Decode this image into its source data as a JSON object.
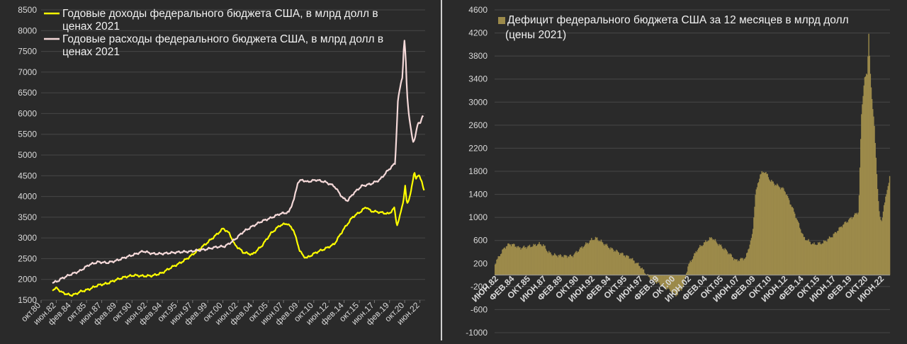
{
  "chart_data": [
    {
      "type": "line",
      "title": "",
      "xlabel": "",
      "ylabel": "",
      "ylim": [
        1500,
        8500
      ],
      "y_ticks": [
        "1500",
        "2000",
        "2500",
        "3000",
        "3500",
        "4000",
        "4500",
        "5000",
        "5500",
        "6000",
        "6500",
        "7000",
        "7500",
        "8000",
        "8500"
      ],
      "x_range": [
        1980.75,
        2023.0
      ],
      "x_ticks": [
        {
          "label": "окт.80",
          "x": 1980.75
        },
        {
          "label": "июн.82",
          "x": 1982.42
        },
        {
          "label": "фев.84",
          "x": 1984.08
        },
        {
          "label": "окт.85",
          "x": 1985.75
        },
        {
          "label": "июн.87",
          "x": 1987.42
        },
        {
          "label": "фев.89",
          "x": 1989.08
        },
        {
          "label": "окт.90",
          "x": 1990.75
        },
        {
          "label": "июн.92",
          "x": 1992.42
        },
        {
          "label": "фев.94",
          "x": 1994.08
        },
        {
          "label": "окт.95",
          "x": 1995.75
        },
        {
          "label": "июн.97",
          "x": 1997.42
        },
        {
          "label": "фев.99",
          "x": 1999.08
        },
        {
          "label": "окт.00",
          "x": 2000.75
        },
        {
          "label": "июн.02",
          "x": 2002.42
        },
        {
          "label": "фев.04",
          "x": 2004.08
        },
        {
          "label": "окт.05",
          "x": 2005.75
        },
        {
          "label": "июн.07",
          "x": 2007.42
        },
        {
          "label": "фев.09",
          "x": 2009.08
        },
        {
          "label": "окт.10",
          "x": 2010.75
        },
        {
          "label": "июн.12",
          "x": 2012.42
        },
        {
          "label": "фев.14",
          "x": 2014.08
        },
        {
          "label": "окт.15",
          "x": 2015.75
        },
        {
          "label": "июн.17",
          "x": 2017.42
        },
        {
          "label": "фев.19",
          "x": 2019.08
        },
        {
          "label": "окт.20",
          "x": 2020.75
        },
        {
          "label": "июн.22",
          "x": 2022.42
        }
      ],
      "grid": true,
      "legend_position": "top-left",
      "series": [
        {
          "name": "Годовые доходы федерального бюджета США, в млрд долл в ценах 2021",
          "color": "#ffff00",
          "points": [
            [
              1982.0,
              1750
            ],
            [
              1982.5,
              1790
            ],
            [
              1983.0,
              1690
            ],
            [
              1983.5,
              1650
            ],
            [
              1984.0,
              1620
            ],
            [
              1984.5,
              1640
            ],
            [
              1985.0,
              1700
            ],
            [
              1986.0,
              1760
            ],
            [
              1987.0,
              1860
            ],
            [
              1988.0,
              1900
            ],
            [
              1989.0,
              1990
            ],
            [
              1990.0,
              2060
            ],
            [
              1991.0,
              2100
            ],
            [
              1992.0,
              2080
            ],
            [
              1993.0,
              2090
            ],
            [
              1994.0,
              2150
            ],
            [
              1995.0,
              2280
            ],
            [
              1996.0,
              2390
            ],
            [
              1997.0,
              2530
            ],
            [
              1998.0,
              2700
            ],
            [
              1999.0,
              2880
            ],
            [
              2000.0,
              3070
            ],
            [
              2000.8,
              3230
            ],
            [
              2001.5,
              3100
            ],
            [
              2002.0,
              2850
            ],
            [
              2003.0,
              2650
            ],
            [
              2004.0,
              2600
            ],
            [
              2005.0,
              2800
            ],
            [
              2006.0,
              3100
            ],
            [
              2007.0,
              3300
            ],
            [
              2007.8,
              3350
            ],
            [
              2008.5,
              3200
            ],
            [
              2009.2,
              2700
            ],
            [
              2009.6,
              2560
            ],
            [
              2010.0,
              2520
            ],
            [
              2011.0,
              2650
            ],
            [
              2012.0,
              2740
            ],
            [
              2013.0,
              2850
            ],
            [
              2014.0,
              3200
            ],
            [
              2015.0,
              3500
            ],
            [
              2016.0,
              3650
            ],
            [
              2016.5,
              3750
            ],
            [
              2017.0,
              3650
            ],
            [
              2018.0,
              3620
            ],
            [
              2019.0,
              3580
            ],
            [
              2019.6,
              3720
            ],
            [
              2019.9,
              3300
            ],
            [
              2020.2,
              3500
            ],
            [
              2020.6,
              3900
            ],
            [
              2020.8,
              4250
            ],
            [
              2021.0,
              3800
            ],
            [
              2021.3,
              4000
            ],
            [
              2021.6,
              4300
            ],
            [
              2021.8,
              4600
            ],
            [
              2022.0,
              4450
            ],
            [
              2022.3,
              4500
            ],
            [
              2022.6,
              4400
            ],
            [
              2022.9,
              4110
            ]
          ]
        },
        {
          "name": "Годовые расходы федерального бюджета США, в млрд долл в ценах 2021",
          "color": "#f5d9d9",
          "points": [
            [
              1982.0,
              1920
            ],
            [
              1982.5,
              1950
            ],
            [
              1983.0,
              2020
            ],
            [
              1983.5,
              2070
            ],
            [
              1984.0,
              2120
            ],
            [
              1985.0,
              2200
            ],
            [
              1986.0,
              2350
            ],
            [
              1987.0,
              2420
            ],
            [
              1988.0,
              2400
            ],
            [
              1989.0,
              2450
            ],
            [
              1990.0,
              2530
            ],
            [
              1991.0,
              2600
            ],
            [
              1992.0,
              2680
            ],
            [
              1993.0,
              2620
            ],
            [
              1994.0,
              2620
            ],
            [
              1995.0,
              2640
            ],
            [
              1996.0,
              2660
            ],
            [
              1997.0,
              2670
            ],
            [
              1998.0,
              2700
            ],
            [
              1999.0,
              2730
            ],
            [
              2000.0,
              2780
            ],
            [
              2001.0,
              2800
            ],
            [
              2002.0,
              2950
            ],
            [
              2003.0,
              3150
            ],
            [
              2004.0,
              3280
            ],
            [
              2005.0,
              3400
            ],
            [
              2006.0,
              3480
            ],
            [
              2007.0,
              3580
            ],
            [
              2008.0,
              3620
            ],
            [
              2008.6,
              3950
            ],
            [
              2009.0,
              4350
            ],
            [
              2009.5,
              4400
            ],
            [
              2010.0,
              4350
            ],
            [
              2011.0,
              4400
            ],
            [
              2012.0,
              4350
            ],
            [
              2013.0,
              4250
            ],
            [
              2014.0,
              3950
            ],
            [
              2014.5,
              3900
            ],
            [
              2015.0,
              4050
            ],
            [
              2016.0,
              4250
            ],
            [
              2017.0,
              4300
            ],
            [
              2018.0,
              4400
            ],
            [
              2019.0,
              4650
            ],
            [
              2019.7,
              4800
            ],
            [
              2020.0,
              6300
            ],
            [
              2020.3,
              6700
            ],
            [
              2020.5,
              6900
            ],
            [
              2020.7,
              7800
            ],
            [
              2020.85,
              7400
            ],
            [
              2021.0,
              6500
            ],
            [
              2021.2,
              6000
            ],
            [
              2021.5,
              5500
            ],
            [
              2021.7,
              5300
            ],
            [
              2021.9,
              5450
            ],
            [
              2022.2,
              5750
            ],
            [
              2022.5,
              5800
            ],
            [
              2022.7,
              5950
            ],
            [
              2022.8,
              5900
            ]
          ]
        }
      ]
    },
    {
      "type": "bar",
      "title": "",
      "xlabel": "",
      "ylabel": "",
      "ylim": [
        -1000,
        4600
      ],
      "y_ticks": [
        "-1000",
        "-600",
        "-200",
        "200",
        "600",
        "1000",
        "1400",
        "1800",
        "2200",
        "2600",
        "3000",
        "3400",
        "3800",
        "4200",
        "4600"
      ],
      "x_range": [
        1982.0,
        2023.0
      ],
      "x_ticks": [
        {
          "label": "ИЮН.82",
          "x": 1982.42
        },
        {
          "label": "ФЕВ.84",
          "x": 1984.08
        },
        {
          "label": "ОКТ.85",
          "x": 1985.75
        },
        {
          "label": "ИЮН.87",
          "x": 1987.42
        },
        {
          "label": "ФЕВ.89",
          "x": 1989.08
        },
        {
          "label": "ОКТ.90",
          "x": 1990.75
        },
        {
          "label": "ИЮН.92",
          "x": 1992.42
        },
        {
          "label": "ФЕВ.94",
          "x": 1994.08
        },
        {
          "label": "ОКТ.95",
          "x": 1995.75
        },
        {
          "label": "ИЮН.97",
          "x": 1997.42
        },
        {
          "label": "ФЕВ.99",
          "x": 1999.08
        },
        {
          "label": "ОКТ.00",
          "x": 2000.75
        },
        {
          "label": "ИЮН.02",
          "x": 2002.42
        },
        {
          "label": "ФЕВ.04",
          "x": 2004.08
        },
        {
          "label": "ОКТ.05",
          "x": 2005.75
        },
        {
          "label": "ИЮН.07",
          "x": 2007.42
        },
        {
          "label": "ФЕВ.09",
          "x": 2009.08
        },
        {
          "label": "ОКТ.10",
          "x": 2010.75
        },
        {
          "label": "ИЮН.12",
          "x": 2012.42
        },
        {
          "label": "ФЕВ.14",
          "x": 2014.08
        },
        {
          "label": "ОКТ.15",
          "x": 2015.75
        },
        {
          "label": "ИЮН.17",
          "x": 2017.42
        },
        {
          "label": "ФЕВ.19",
          "x": 2019.08
        },
        {
          "label": "ОКТ.20",
          "x": 2020.75
        },
        {
          "label": "ИЮН.22",
          "x": 2022.42
        }
      ],
      "grid": true,
      "legend_position": "top-left",
      "series": [
        {
          "name": "Дефицит федерального бюджета США за 12 месяцев в млрд долл (цены 2021)",
          "color": "#9c8a4a",
          "points": [
            [
              1982.0,
              200
            ],
            [
              1982.5,
              350
            ],
            [
              1983.0,
              480
            ],
            [
              1983.5,
              540
            ],
            [
              1984.0,
              520
            ],
            [
              1984.5,
              470
            ],
            [
              1985.0,
              480
            ],
            [
              1986.0,
              510
            ],
            [
              1986.5,
              540
            ],
            [
              1987.0,
              520
            ],
            [
              1987.5,
              400
            ],
            [
              1988.0,
              350
            ],
            [
              1989.0,
              330
            ],
            [
              1990.0,
              330
            ],
            [
              1991.0,
              480
            ],
            [
              1992.0,
              610
            ],
            [
              1992.5,
              640
            ],
            [
              1993.0,
              580
            ],
            [
              1994.0,
              460
            ],
            [
              1995.0,
              380
            ],
            [
              1996.0,
              300
            ],
            [
              1997.0,
              160
            ],
            [
              1998.0,
              -50
            ],
            [
              1999.0,
              -150
            ],
            [
              2000.0,
              -250
            ],
            [
              2000.8,
              -350
            ],
            [
              2001.5,
              -200
            ],
            [
              2002.0,
              150
            ],
            [
              2003.0,
              450
            ],
            [
              2004.0,
              600
            ],
            [
              2004.5,
              650
            ],
            [
              2005.0,
              560
            ],
            [
              2006.0,
              420
            ],
            [
              2007.0,
              250
            ],
            [
              2008.0,
              300
            ],
            [
              2008.7,
              700
            ],
            [
              2009.0,
              1400
            ],
            [
              2009.5,
              1750
            ],
            [
              2010.0,
              1800
            ],
            [
              2010.5,
              1650
            ],
            [
              2011.0,
              1580
            ],
            [
              2012.0,
              1480
            ],
            [
              2013.0,
              1100
            ],
            [
              2014.0,
              650
            ],
            [
              2015.0,
              530
            ],
            [
              2016.0,
              560
            ],
            [
              2017.0,
              680
            ],
            [
              2018.0,
              860
            ],
            [
              2019.0,
              1000
            ],
            [
              2019.7,
              1100
            ],
            [
              2020.0,
              2800
            ],
            [
              2020.3,
              3400
            ],
            [
              2020.6,
              3500
            ],
            [
              2020.75,
              4200
            ],
            [
              2020.9,
              3500
            ],
            [
              2021.1,
              3000
            ],
            [
              2021.3,
              2700
            ],
            [
              2021.5,
              2000
            ],
            [
              2021.7,
              1400
            ],
            [
              2021.9,
              1000
            ],
            [
              2022.1,
              900
            ],
            [
              2022.3,
              1200
            ],
            [
              2022.6,
              1400
            ],
            [
              2022.8,
              1600
            ],
            [
              2022.95,
              1750
            ]
          ]
        }
      ]
    }
  ]
}
